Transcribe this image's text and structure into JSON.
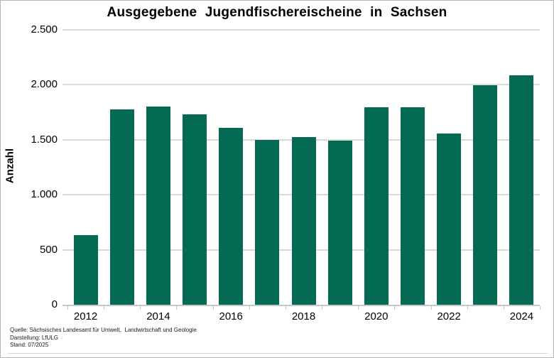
{
  "chart_data": {
    "type": "bar",
    "title": "Ausgegebene Jugendfischereischeine in Sachsen",
    "xlabel": "",
    "ylabel": "Anzahl",
    "categories": [
      "2012",
      "2013",
      "2014",
      "2015",
      "2016",
      "2017",
      "2018",
      "2019",
      "2020",
      "2021",
      "2022",
      "2023",
      "2024"
    ],
    "values": [
      630,
      1775,
      1800,
      1730,
      1610,
      1500,
      1525,
      1490,
      1795,
      1795,
      1560,
      1995,
      2085
    ],
    "ylim": [
      0,
      2500
    ],
    "ytick_step": 500,
    "ytick_labels": [
      "0",
      "500",
      "1.000",
      "1.500",
      "2.000",
      "2.500"
    ],
    "xtick_labels": [
      "2012",
      "2014",
      "2016",
      "2018",
      "2020",
      "2022",
      "2024"
    ],
    "xtick_label_every": 2,
    "grid": true,
    "legend": false,
    "bar_color": "#046a54"
  },
  "footer": {
    "source": "Quelle: Sächsisches Landesamt für Umwelt,  Landwirtschaft und Geologie",
    "presentation": "Darstellung: LfULG",
    "stand": "Stand: 07/2025"
  },
  "colors": {
    "bar": "#046a54",
    "gridline": "#d9d9d9",
    "axis": "#c6c6c6",
    "text": "#000000",
    "frame_border": "#b5b5b5",
    "separator": "#d4d4d4"
  }
}
